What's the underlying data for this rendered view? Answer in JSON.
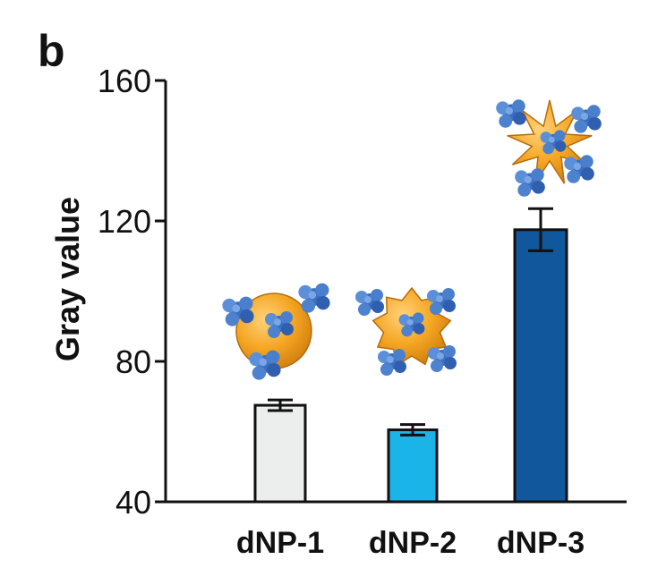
{
  "panel_label": "b",
  "chart_data": {
    "type": "bar",
    "title": "",
    "xlabel": "",
    "ylabel": "Gray value",
    "ylim": [
      40,
      160
    ],
    "yticks": [
      "40",
      "80",
      "120",
      "160"
    ],
    "ytick_values": [
      40,
      80,
      120,
      160
    ],
    "categories": [
      "dNP-1",
      "dNP-2",
      "dNP-3"
    ],
    "values": [
      67.5,
      60.5,
      117.5
    ],
    "errors": [
      1.5,
      1.5,
      6
    ],
    "colors": [
      "#eceeee",
      "#1bb4e8",
      "#11579c"
    ],
    "icons": [
      "sphere-nanoparticle-icon",
      "spiky-nanoparticle-icon",
      "star-nanoparticle-icon"
    ],
    "grid": false
  }
}
